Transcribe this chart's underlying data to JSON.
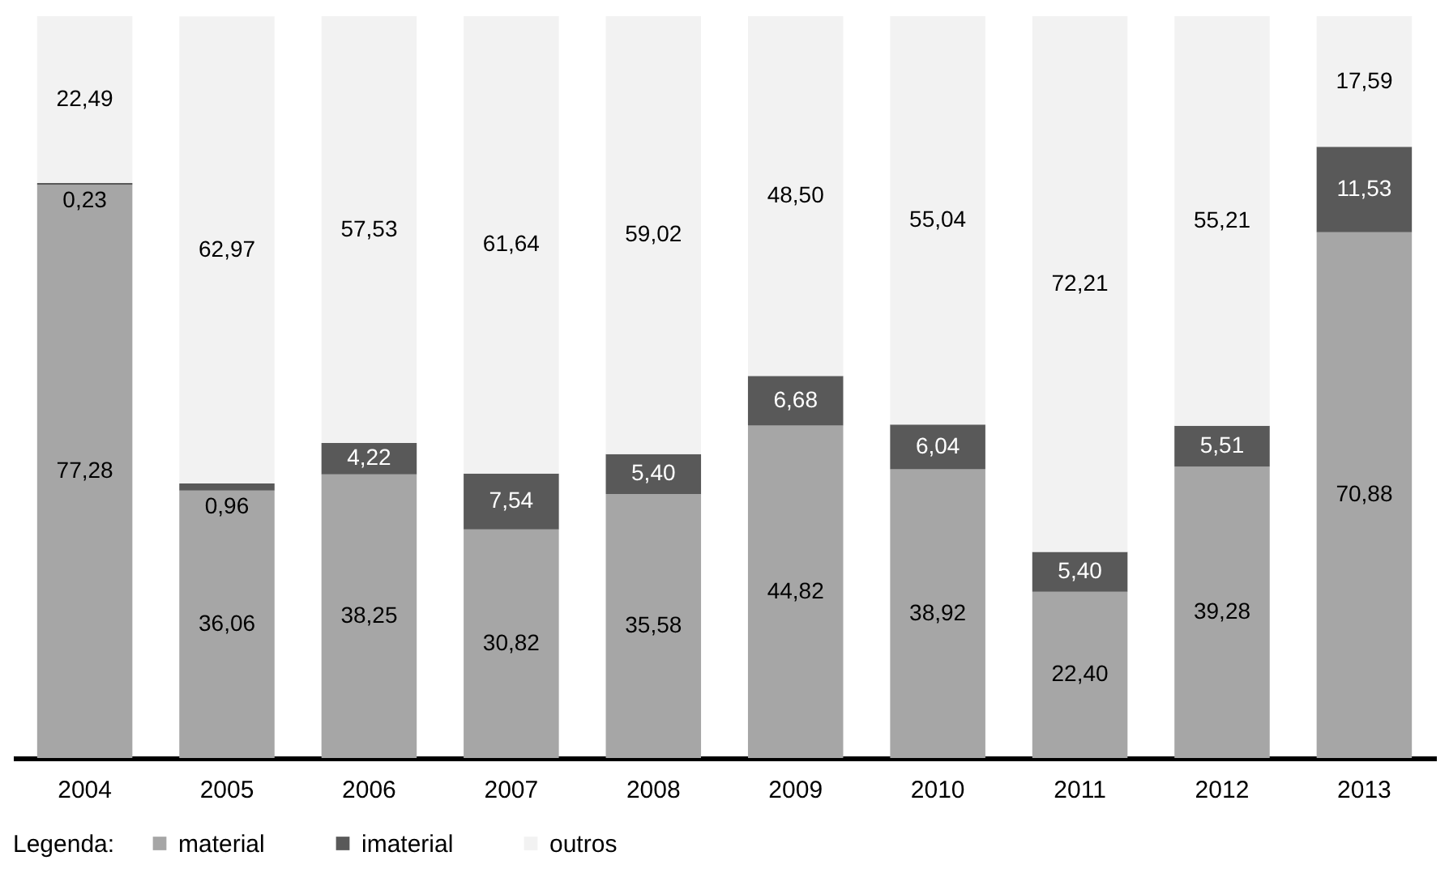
{
  "chart_data": {
    "type": "bar",
    "stacked": true,
    "legend": "bottom",
    "legend_title": "Legenda:",
    "categories": [
      "2004",
      "2005",
      "2006",
      "2007",
      "2008",
      "2009",
      "2010",
      "2011",
      "2012",
      "2013"
    ],
    "series": [
      {
        "name": "material",
        "color": "#a6a6a6",
        "values": [
          77.28,
          36.06,
          38.25,
          30.82,
          35.58,
          44.82,
          38.92,
          22.4,
          39.28,
          70.88
        ],
        "value_labels": [
          "77,28",
          "36,06",
          "38,25",
          "30,82",
          "35,58",
          "44,82",
          "38,92",
          "22,40",
          "39,28",
          "70,88"
        ]
      },
      {
        "name": "imaterial",
        "color": "#595959",
        "values": [
          0.23,
          0.96,
          4.22,
          7.54,
          5.4,
          6.68,
          6.04,
          5.4,
          5.51,
          11.53
        ],
        "value_labels": [
          "0,23",
          "0,96",
          "4,22",
          "7,54",
          "5,40",
          "6,68",
          "6,04",
          "5,40",
          "5,51",
          "11,53"
        ]
      },
      {
        "name": "outros",
        "color": "#f2f2f2",
        "values": [
          22.49,
          62.97,
          57.53,
          61.64,
          59.02,
          48.5,
          55.04,
          72.21,
          55.21,
          17.59
        ],
        "value_labels": [
          "22,49",
          "62,97",
          "57,53",
          "61,64",
          "59,02",
          "48,50",
          "55,04",
          "72,21",
          "55,21",
          "17,59"
        ]
      }
    ]
  }
}
